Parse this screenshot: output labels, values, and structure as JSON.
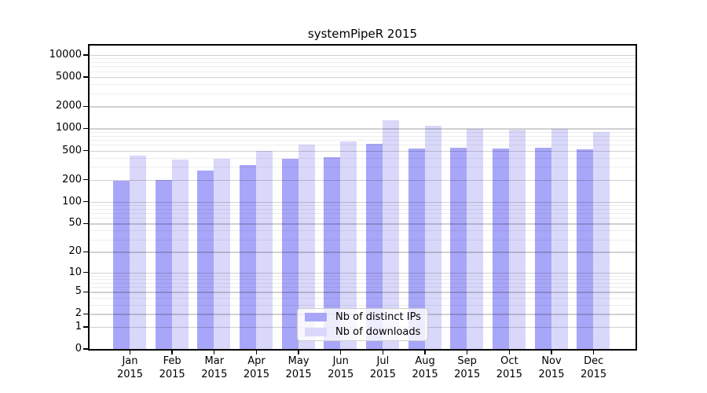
{
  "title": "systemPipeR 2015",
  "colors": {
    "distinct_ips": "#a8a6f8",
    "downloads": "#d9d8fa",
    "spine": "#000000",
    "grid_major": "#d1d1d1",
    "grid_minor": "#ededed"
  },
  "chart_data": {
    "type": "bar",
    "title": "systemPipeR 2015",
    "scale": "log10(1+y)",
    "grid": true,
    "legend_position": "bottom-center",
    "categories": [
      "Jan",
      "Feb",
      "Mar",
      "Apr",
      "May",
      "Jun",
      "Jul",
      "Aug",
      "Sep",
      "Oct",
      "Nov",
      "Dec"
    ],
    "category_year": "2015",
    "series": [
      {
        "name": "Nb of distinct IPs",
        "color": "#a8a6f8",
        "values": [
          195,
          200,
          270,
          320,
          385,
          405,
          615,
          535,
          545,
          535,
          550,
          525
        ]
      },
      {
        "name": "Nb of downloads",
        "color": "#d9d8fa",
        "values": [
          430,
          380,
          385,
          490,
          600,
          660,
          1310,
          1080,
          980,
          955,
          985,
          885
        ]
      }
    ],
    "yticks": [
      0,
      1,
      2,
      5,
      10,
      20,
      50,
      100,
      200,
      500,
      1000,
      2000,
      5000,
      10000
    ],
    "ylim": [
      0,
      13900
    ],
    "xlabel": "",
    "ylabel": ""
  }
}
